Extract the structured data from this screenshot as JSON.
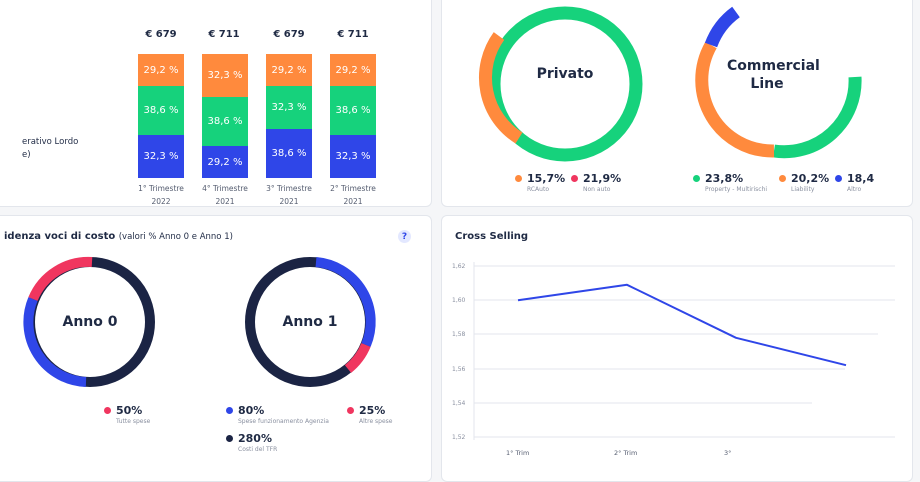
{
  "colors": {
    "blue": "#2f46e8",
    "green": "#16d27c",
    "orange": "#ff8a3d",
    "red": "#f0365f",
    "navy": "#1b2444"
  },
  "stacked": {
    "ylabel_line1": "erativo Lordo",
    "ylabel_line2": "e)",
    "bars": [
      {
        "total": "€ 679",
        "top": "29,2 %",
        "mid": "38,6 %",
        "bot": "32,3 %",
        "cat1": "1° Trimestre",
        "cat2": "2022"
      },
      {
        "total": "€ 711",
        "top": "32,3 %",
        "mid": "38,6 %",
        "bot": "29,2 %",
        "cat1": "4° Trimestre",
        "cat2": "2021"
      },
      {
        "total": "€ 679",
        "top": "29,2 %",
        "mid": "32,3 %",
        "bot": "38,6 %",
        "cat1": "3° Trimestre",
        "cat2": "2021"
      },
      {
        "total": "€ 711",
        "top": "29,2 %",
        "mid": "38,6 %",
        "bot": "32,3 %",
        "cat1": "2° Trimestre",
        "cat2": "2021"
      }
    ]
  },
  "privato": {
    "title": "Privato",
    "legend": [
      {
        "value": "15,7%",
        "label": "RCAuto",
        "color": "#ff8a3d"
      },
      {
        "value": "21,9%",
        "label": "Non auto",
        "color": "#f0365f"
      }
    ]
  },
  "commercial": {
    "title_line1": "Commercial",
    "title_line2": "Line",
    "legend": [
      {
        "value": "23,8%",
        "label": "Property - Multirischi",
        "color": "#16d27c"
      },
      {
        "value": "20,2%",
        "label": "Liability",
        "color": "#ff8a3d"
      },
      {
        "value": "18,4",
        "label": "Altro",
        "color": "#2f46e8"
      }
    ]
  },
  "costi": {
    "title": "idenza voci di costo",
    "subtitle": "(valori % Anno 0 e Anno 1)",
    "help": "?",
    "anno0": "Anno 0",
    "anno1": "Anno 1",
    "legend0": {
      "value": "50%",
      "label": "Tutte spese"
    },
    "legend1a": {
      "value": "80%",
      "label": "Spese funzionamento Agenzia"
    },
    "legend1b": {
      "value": "25%",
      "label": "Altre spese"
    },
    "legend1c": {
      "value": "280%",
      "label": "Costi del TFR"
    }
  },
  "cross": {
    "title": "Cross Selling",
    "yticks": [
      "1,62",
      "1,60",
      "1,58",
      "1,56",
      "1,54",
      "1,52"
    ],
    "xticks": [
      "1° Trim",
      "2° Trim",
      "3°"
    ]
  },
  "chart_data": {
    "type": "line",
    "title": "Cross Selling",
    "categories": [
      "1° Trim",
      "2° Trim",
      "3°",
      ""
    ],
    "values": [
      1.6,
      1.609,
      1.578,
      1.562
    ],
    "ylim": [
      1.52,
      1.62
    ],
    "grid": true
  }
}
